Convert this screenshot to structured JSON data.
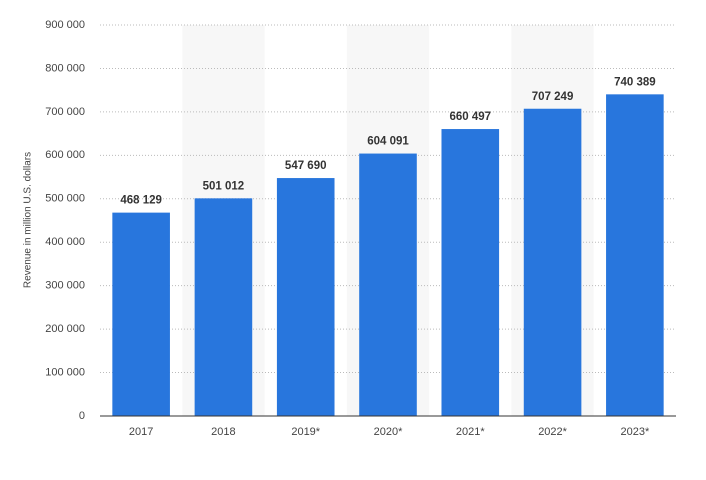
{
  "chart_data": {
    "type": "bar",
    "y_label": "Revenue in million U.S. dollars",
    "categories": [
      "2017",
      "2018",
      "2019*",
      "2020*",
      "2021*",
      "2022*",
      "2023*"
    ],
    "values": [
      468129,
      501012,
      547690,
      604091,
      660497,
      707249,
      740389
    ],
    "value_labels": [
      "468 129",
      "501 012",
      "547 690",
      "604 091",
      "660 497",
      "707 249",
      "740 389"
    ],
    "color": "#2876dd",
    "ylim": [
      0,
      900000
    ],
    "yticks": [
      0,
      {
        "value": 100000,
        "label": "100 000"
      },
      {
        "value": 200000,
        "label": "200 000"
      },
      {
        "value": 300000,
        "label": "300 000"
      },
      {
        "value": 400000,
        "label": "400 000"
      },
      {
        "value": 500000,
        "label": "500 000"
      },
      {
        "value": 600000,
        "label": "600 000"
      },
      {
        "value": 700000,
        "label": "700 000"
      },
      {
        "value": 800000,
        "label": "800 000"
      },
      {
        "value": 900000,
        "label": "900 000"
      }
    ],
    "grid": true
  }
}
